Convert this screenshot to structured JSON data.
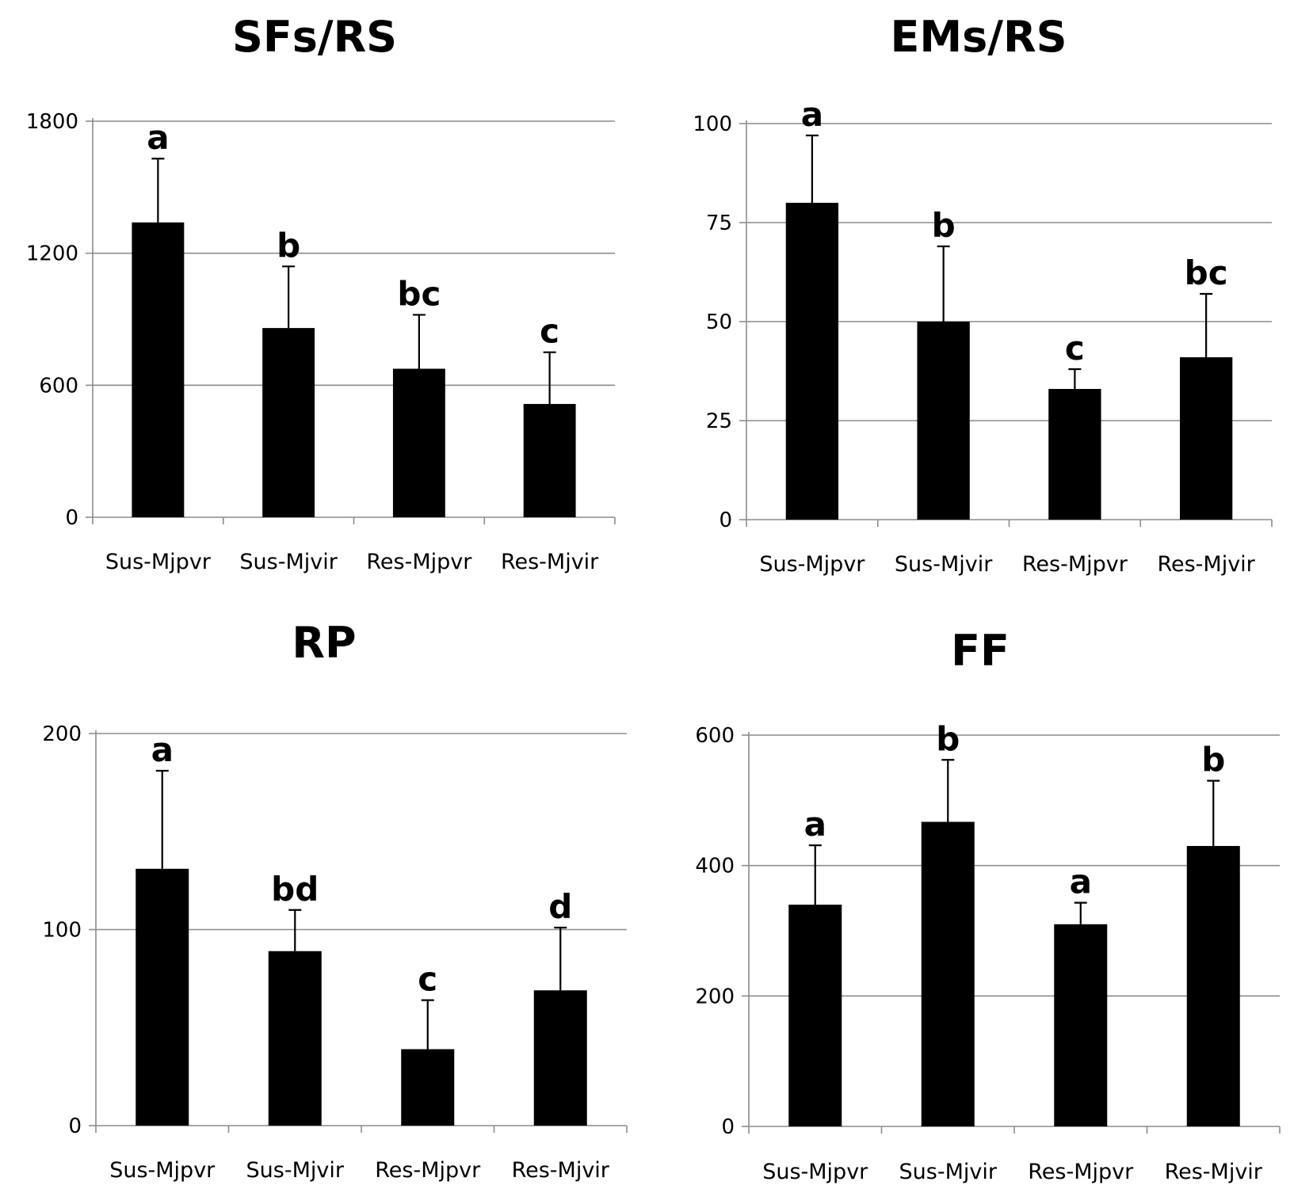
{
  "chart_data": [
    {
      "type": "bar",
      "title": "SFs/RS",
      "categories": [
        "Sus-Mjpvr",
        "Sus-Mjvir",
        "Res-Mjpvr",
        "Res-Mjvir"
      ],
      "values": [
        1340,
        860,
        675,
        515
      ],
      "error": [
        290,
        280,
        245,
        235
      ],
      "significance": [
        "a",
        "b",
        "bc",
        "c"
      ],
      "yticks": [
        "0",
        "600",
        "1200",
        "1800"
      ],
      "ylim": [
        0,
        1800
      ],
      "xlabel": "",
      "ylabel": "",
      "grid": true,
      "color": "#000000"
    },
    {
      "type": "bar",
      "title": "EMs/RS",
      "categories": [
        "Sus-Mjpvr",
        "Sus-Mjvir",
        "Res-Mjpvr",
        "Res-Mjvir"
      ],
      "values": [
        80,
        50,
        33,
        41
      ],
      "error": [
        17,
        19,
        5,
        16
      ],
      "significance": [
        "a",
        "b",
        "c",
        "bc"
      ],
      "yticks": [
        "0",
        "25",
        "50",
        "75",
        "100"
      ],
      "ylim": [
        0,
        100
      ],
      "xlabel": "",
      "ylabel": "",
      "grid": true,
      "color": "#000000"
    },
    {
      "type": "bar",
      "title": "RP",
      "categories": [
        "Sus-Mjpvr",
        "Sus-Mjvir",
        "Res-Mjpvr",
        "Res-Mjvir"
      ],
      "values": [
        131,
        89,
        39,
        69
      ],
      "error": [
        50,
        21,
        25,
        32
      ],
      "significance": [
        "a",
        "bd",
        "c",
        "d"
      ],
      "yticks": [
        "0",
        "100",
        "200"
      ],
      "ylim": [
        0,
        200
      ],
      "xlabel": "",
      "ylabel": "",
      "grid": true,
      "color": "#000000"
    },
    {
      "type": "bar",
      "title": "FF",
      "categories": [
        "Sus-Mjpvr",
        "Sus-Mjvir",
        "Res-Mjpvr",
        "Res-Mjvir"
      ],
      "values": [
        340,
        467,
        310,
        430
      ],
      "error": [
        91,
        95,
        33,
        100
      ],
      "significance": [
        "a",
        "b",
        "a",
        "b"
      ],
      "yticks": [
        "0",
        "200",
        "400",
        "600"
      ],
      "ylim": [
        0,
        600
      ],
      "xlabel": "",
      "ylabel": "",
      "grid": true,
      "color": "#000000"
    }
  ]
}
